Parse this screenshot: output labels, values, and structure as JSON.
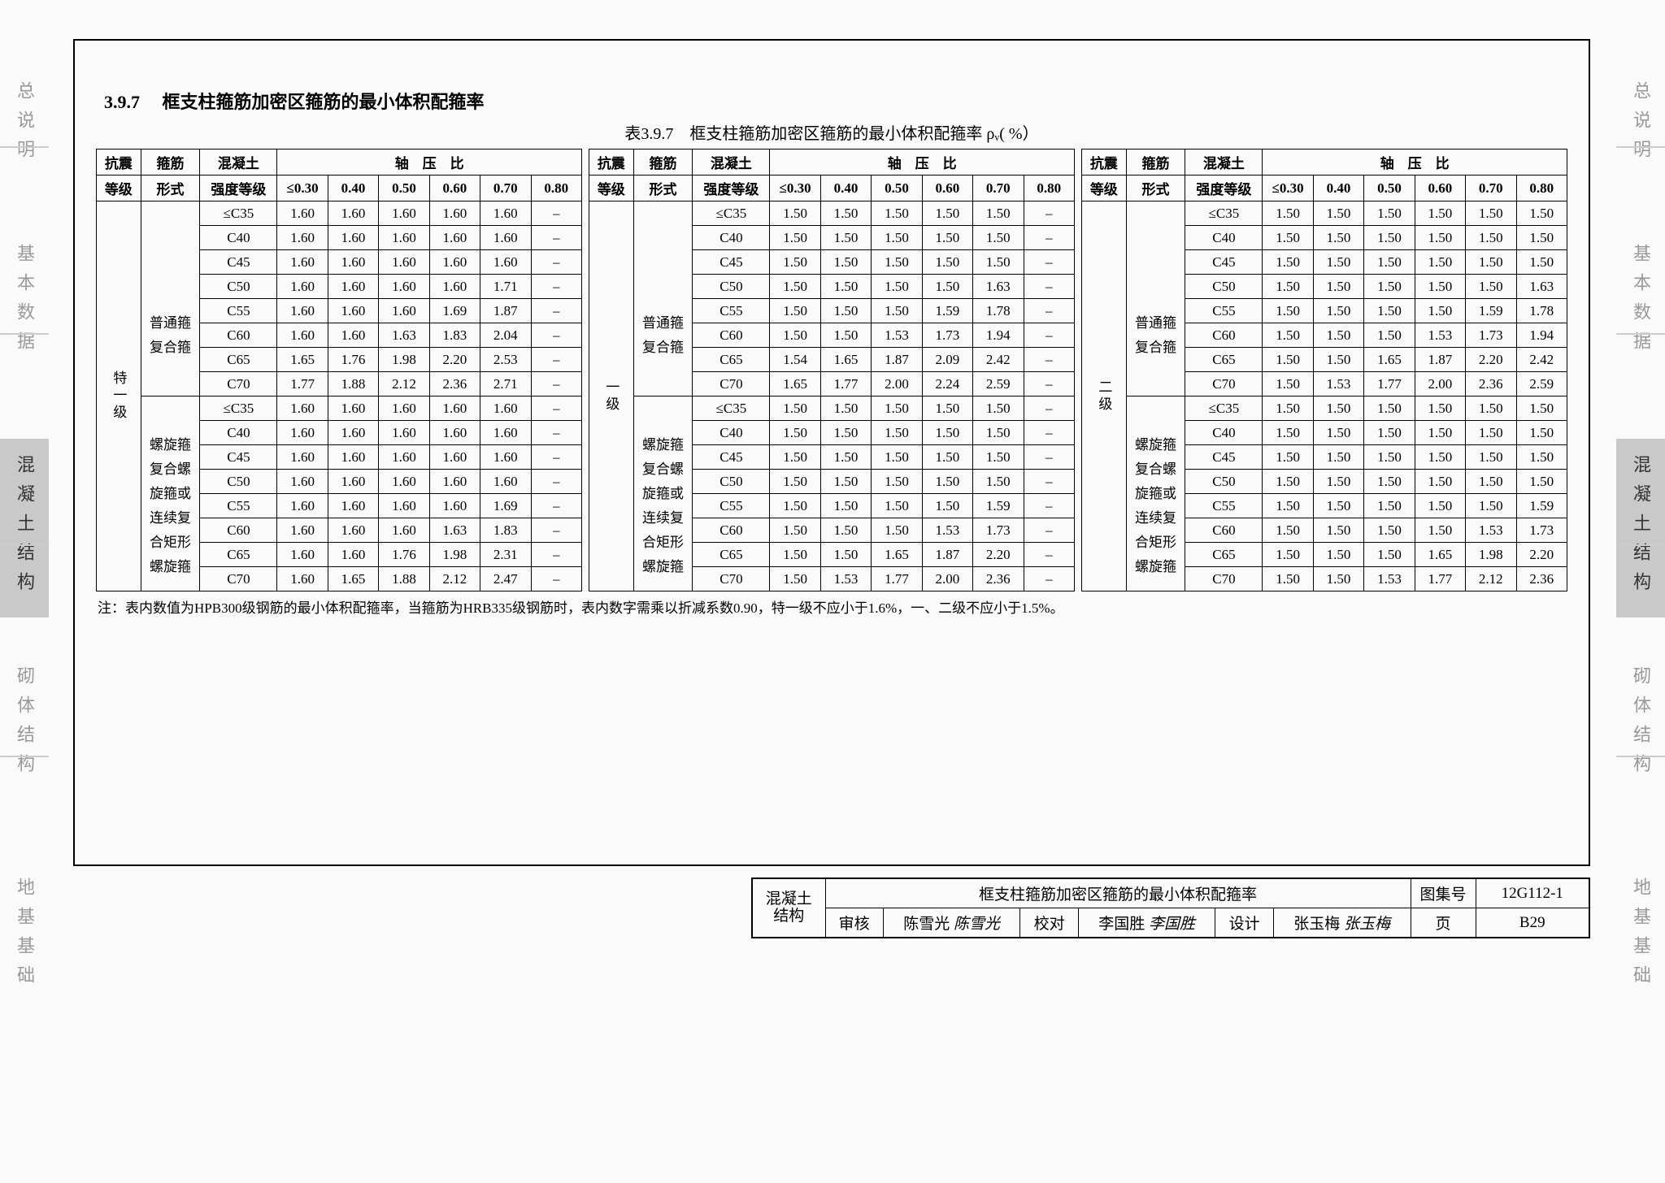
{
  "side_tabs": [
    "总说明",
    "基本数据",
    "混凝土结构",
    "砌体结构",
    "地基基础"
  ],
  "active_tab_index": 2,
  "section": {
    "number": "3.9.7",
    "title": "框支柱箍筋加密区箍筋的最小体积配箍率"
  },
  "table_caption": "表3.9.7　框支柱箍筋加密区箍筋的最小体积配箍率 ρᵥ( %）",
  "header": {
    "seismic": "抗震",
    "seismic2": "等级",
    "stirrup": "箍筋",
    "stirrup2": "形式",
    "concrete": "混凝土",
    "concrete2": "强度等级",
    "axial": "轴　压　比",
    "ratios": [
      "≤0.30",
      "0.40",
      "0.50",
      "0.60",
      "0.70",
      "0.80"
    ]
  },
  "blocks": [
    {
      "level": "特一级",
      "groups": [
        {
          "stirrup_labels": [
            "普通箍",
            "复合箍"
          ],
          "rows": [
            {
              "g": "≤C35",
              "v": [
                "1.60",
                "1.60",
                "1.60",
                "1.60",
                "1.60",
                "–"
              ]
            },
            {
              "g": "C40",
              "v": [
                "1.60",
                "1.60",
                "1.60",
                "1.60",
                "1.60",
                "–"
              ]
            },
            {
              "g": "C45",
              "v": [
                "1.60",
                "1.60",
                "1.60",
                "1.60",
                "1.60",
                "–"
              ]
            },
            {
              "g": "C50",
              "v": [
                "1.60",
                "1.60",
                "1.60",
                "1.60",
                "1.71",
                "–"
              ]
            },
            {
              "g": "C55",
              "v": [
                "1.60",
                "1.60",
                "1.60",
                "1.69",
                "1.87",
                "–"
              ]
            },
            {
              "g": "C60",
              "v": [
                "1.60",
                "1.60",
                "1.63",
                "1.83",
                "2.04",
                "–"
              ]
            },
            {
              "g": "C65",
              "v": [
                "1.65",
                "1.76",
                "1.98",
                "2.20",
                "2.53",
                "–"
              ]
            },
            {
              "g": "C70",
              "v": [
                "1.77",
                "1.88",
                "2.12",
                "2.36",
                "2.71",
                "–"
              ]
            }
          ]
        },
        {
          "stirrup_labels": [
            "螺旋箍",
            "复合螺",
            "旋箍或",
            "连续复",
            "合矩形",
            "螺旋箍"
          ],
          "rows": [
            {
              "g": "≤C35",
              "v": [
                "1.60",
                "1.60",
                "1.60",
                "1.60",
                "1.60",
                "–"
              ]
            },
            {
              "g": "C40",
              "v": [
                "1.60",
                "1.60",
                "1.60",
                "1.60",
                "1.60",
                "–"
              ]
            },
            {
              "g": "C45",
              "v": [
                "1.60",
                "1.60",
                "1.60",
                "1.60",
                "1.60",
                "–"
              ]
            },
            {
              "g": "C50",
              "v": [
                "1.60",
                "1.60",
                "1.60",
                "1.60",
                "1.60",
                "–"
              ]
            },
            {
              "g": "C55",
              "v": [
                "1.60",
                "1.60",
                "1.60",
                "1.60",
                "1.69",
                "–"
              ]
            },
            {
              "g": "C60",
              "v": [
                "1.60",
                "1.60",
                "1.60",
                "1.63",
                "1.83",
                "–"
              ]
            },
            {
              "g": "C65",
              "v": [
                "1.60",
                "1.60",
                "1.76",
                "1.98",
                "2.31",
                "–"
              ]
            },
            {
              "g": "C70",
              "v": [
                "1.60",
                "1.65",
                "1.88",
                "2.12",
                "2.47",
                "–"
              ]
            }
          ]
        }
      ]
    },
    {
      "level": "一级",
      "groups": [
        {
          "stirrup_labels": [
            "普通箍",
            "复合箍"
          ],
          "rows": [
            {
              "g": "≤C35",
              "v": [
                "1.50",
                "1.50",
                "1.50",
                "1.50",
                "1.50",
                "–"
              ]
            },
            {
              "g": "C40",
              "v": [
                "1.50",
                "1.50",
                "1.50",
                "1.50",
                "1.50",
                "–"
              ]
            },
            {
              "g": "C45",
              "v": [
                "1.50",
                "1.50",
                "1.50",
                "1.50",
                "1.50",
                "–"
              ]
            },
            {
              "g": "C50",
              "v": [
                "1.50",
                "1.50",
                "1.50",
                "1.50",
                "1.63",
                "–"
              ]
            },
            {
              "g": "C55",
              "v": [
                "1.50",
                "1.50",
                "1.50",
                "1.59",
                "1.78",
                "–"
              ]
            },
            {
              "g": "C60",
              "v": [
                "1.50",
                "1.50",
                "1.53",
                "1.73",
                "1.94",
                "–"
              ]
            },
            {
              "g": "C65",
              "v": [
                "1.54",
                "1.65",
                "1.87",
                "2.09",
                "2.42",
                "–"
              ]
            },
            {
              "g": "C70",
              "v": [
                "1.65",
                "1.77",
                "2.00",
                "2.24",
                "2.59",
                "–"
              ]
            }
          ]
        },
        {
          "stirrup_labels": [
            "螺旋箍",
            "复合螺",
            "旋箍或",
            "连续复",
            "合矩形",
            "螺旋箍"
          ],
          "rows": [
            {
              "g": "≤C35",
              "v": [
                "1.50",
                "1.50",
                "1.50",
                "1.50",
                "1.50",
                "–"
              ]
            },
            {
              "g": "C40",
              "v": [
                "1.50",
                "1.50",
                "1.50",
                "1.50",
                "1.50",
                "–"
              ]
            },
            {
              "g": "C45",
              "v": [
                "1.50",
                "1.50",
                "1.50",
                "1.50",
                "1.50",
                "–"
              ]
            },
            {
              "g": "C50",
              "v": [
                "1.50",
                "1.50",
                "1.50",
                "1.50",
                "1.50",
                "–"
              ]
            },
            {
              "g": "C55",
              "v": [
                "1.50",
                "1.50",
                "1.50",
                "1.50",
                "1.59",
                "–"
              ]
            },
            {
              "g": "C60",
              "v": [
                "1.50",
                "1.50",
                "1.50",
                "1.53",
                "1.73",
                "–"
              ]
            },
            {
              "g": "C65",
              "v": [
                "1.50",
                "1.50",
                "1.65",
                "1.87",
                "2.20",
                "–"
              ]
            },
            {
              "g": "C70",
              "v": [
                "1.50",
                "1.53",
                "1.77",
                "2.00",
                "2.36",
                "–"
              ]
            }
          ]
        }
      ]
    },
    {
      "level": "二级",
      "groups": [
        {
          "stirrup_labels": [
            "普通箍",
            "复合箍"
          ],
          "rows": [
            {
              "g": "≤C35",
              "v": [
                "1.50",
                "1.50",
                "1.50",
                "1.50",
                "1.50",
                "1.50"
              ]
            },
            {
              "g": "C40",
              "v": [
                "1.50",
                "1.50",
                "1.50",
                "1.50",
                "1.50",
                "1.50"
              ]
            },
            {
              "g": "C45",
              "v": [
                "1.50",
                "1.50",
                "1.50",
                "1.50",
                "1.50",
                "1.50"
              ]
            },
            {
              "g": "C50",
              "v": [
                "1.50",
                "1.50",
                "1.50",
                "1.50",
                "1.50",
                "1.63"
              ]
            },
            {
              "g": "C55",
              "v": [
                "1.50",
                "1.50",
                "1.50",
                "1.50",
                "1.59",
                "1.78"
              ]
            },
            {
              "g": "C60",
              "v": [
                "1.50",
                "1.50",
                "1.50",
                "1.53",
                "1.73",
                "1.94"
              ]
            },
            {
              "g": "C65",
              "v": [
                "1.50",
                "1.50",
                "1.65",
                "1.87",
                "2.20",
                "2.42"
              ]
            },
            {
              "g": "C70",
              "v": [
                "1.50",
                "1.53",
                "1.77",
                "2.00",
                "2.36",
                "2.59"
              ]
            }
          ]
        },
        {
          "stirrup_labels": [
            "螺旋箍",
            "复合螺",
            "旋箍或",
            "连续复",
            "合矩形",
            "螺旋箍"
          ],
          "rows": [
            {
              "g": "≤C35",
              "v": [
                "1.50",
                "1.50",
                "1.50",
                "1.50",
                "1.50",
                "1.50"
              ]
            },
            {
              "g": "C40",
              "v": [
                "1.50",
                "1.50",
                "1.50",
                "1.50",
                "1.50",
                "1.50"
              ]
            },
            {
              "g": "C45",
              "v": [
                "1.50",
                "1.50",
                "1.50",
                "1.50",
                "1.50",
                "1.50"
              ]
            },
            {
              "g": "C50",
              "v": [
                "1.50",
                "1.50",
                "1.50",
                "1.50",
                "1.50",
                "1.50"
              ]
            },
            {
              "g": "C55",
              "v": [
                "1.50",
                "1.50",
                "1.50",
                "1.50",
                "1.50",
                "1.59"
              ]
            },
            {
              "g": "C60",
              "v": [
                "1.50",
                "1.50",
                "1.50",
                "1.50",
                "1.53",
                "1.73"
              ]
            },
            {
              "g": "C65",
              "v": [
                "1.50",
                "1.50",
                "1.50",
                "1.65",
                "1.98",
                "2.20"
              ]
            },
            {
              "g": "C70",
              "v": [
                "1.50",
                "1.50",
                "1.53",
                "1.77",
                "2.12",
                "2.36"
              ]
            }
          ]
        }
      ]
    }
  ],
  "note": "注：表内数值为HPB300级钢筋的最小体积配箍率，当箍筋为HRB335级钢筋时，表内数字需乘以折减系数0.90，特一级不应小于1.6%，一、二级不应小于1.5%。",
  "titleblock": {
    "cat1": "混凝土",
    "cat2": "结构",
    "drawing_title": "框支柱箍筋加密区箍筋的最小体积配箍率",
    "atlas_label": "图集号",
    "atlas_no": "12G112-1",
    "review_l": "审核",
    "review_n": "陈雪光",
    "check_l": "校对",
    "check_n": "李国胜",
    "design_l": "设计",
    "design_n": "张玉梅",
    "page_l": "页",
    "page_n": "B29"
  }
}
